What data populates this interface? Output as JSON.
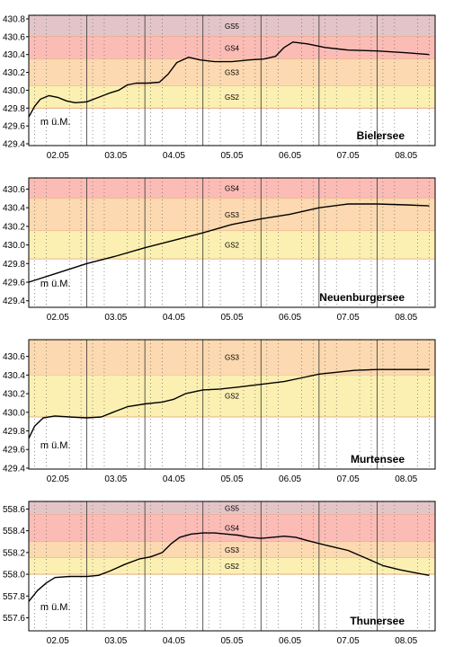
{
  "chart_data": [
    {
      "type": "line",
      "title": "Bielersee",
      "unit_label": "m ü.M.",
      "ylim": [
        429.38,
        430.84
      ],
      "yticks": [
        "429.4",
        "429.6",
        "429.8",
        "430.0",
        "430.2",
        "430.4",
        "430.6",
        "430.8"
      ],
      "xticks": [
        "02.05",
        "03.05",
        "04.05",
        "05.05",
        "06.05",
        "07.05",
        "08.05"
      ],
      "xlim": [
        1.5,
        8.5
      ],
      "grid": true,
      "zones": [
        {
          "label": "GS5",
          "from": 430.6,
          "to": 430.84,
          "color": "#e3c5c8"
        },
        {
          "label": "GS4",
          "from": 430.35,
          "to": 430.6,
          "color": "#fbbcb6"
        },
        {
          "label": "GS3",
          "from": 430.05,
          "to": 430.35,
          "color": "#fcd9b0"
        },
        {
          "label": "GS2",
          "from": 429.8,
          "to": 430.05,
          "color": "#fbf0b2"
        }
      ],
      "series": [
        {
          "x": [
            1.5,
            1.6,
            1.7,
            1.85,
            2.0,
            2.15,
            2.3,
            2.5,
            2.7,
            2.9,
            3.05,
            3.2,
            3.35,
            3.55,
            3.75,
            3.9,
            4.05,
            4.25,
            4.45,
            4.7,
            5.0,
            5.3,
            5.55,
            5.75,
            5.9,
            6.05,
            6.3,
            6.6,
            7.0,
            7.5,
            8.0,
            8.4
          ],
          "y": [
            429.7,
            429.82,
            429.9,
            429.94,
            429.92,
            429.88,
            429.86,
            429.87,
            429.92,
            429.97,
            430.0,
            430.06,
            430.08,
            430.08,
            430.09,
            430.18,
            430.31,
            430.37,
            430.34,
            430.32,
            430.32,
            430.34,
            430.35,
            430.38,
            430.48,
            430.54,
            430.52,
            430.48,
            430.45,
            430.44,
            430.42,
            430.4
          ]
        }
      ]
    },
    {
      "type": "line",
      "title": "Neuenburgersee",
      "unit_label": "m ü.M.",
      "ylim": [
        429.33,
        430.72
      ],
      "yticks": [
        "429.4",
        "429.6",
        "429.8",
        "430.0",
        "430.2",
        "430.4",
        "430.6"
      ],
      "xticks": [
        "02.05",
        "03.05",
        "04.05",
        "05.05",
        "06.05",
        "07.05",
        "08.05"
      ],
      "xlim": [
        1.5,
        8.5
      ],
      "grid": true,
      "zones": [
        {
          "label": "GS4",
          "from": 430.5,
          "to": 430.72,
          "color": "#fbbcb6"
        },
        {
          "label": "GS3",
          "from": 430.15,
          "to": 430.5,
          "color": "#fcd9b0"
        },
        {
          "label": "GS2",
          "from": 429.85,
          "to": 430.15,
          "color": "#fbf0b2"
        }
      ],
      "series": [
        {
          "x": [
            1.5,
            2.0,
            2.5,
            3.0,
            3.5,
            4.0,
            4.5,
            5.0,
            5.5,
            6.0,
            6.5,
            7.0,
            7.5,
            8.0,
            8.4
          ],
          "y": [
            429.6,
            429.7,
            429.8,
            429.88,
            429.97,
            430.05,
            430.13,
            430.22,
            430.28,
            430.33,
            430.4,
            430.44,
            430.44,
            430.43,
            430.42
          ]
        }
      ]
    },
    {
      "type": "line",
      "title": "Murtensee",
      "unit_label": "m ü.M.",
      "ylim": [
        429.39,
        430.78
      ],
      "yticks": [
        "429.4",
        "429.6",
        "429.8",
        "430.0",
        "430.2",
        "430.4",
        "430.6"
      ],
      "xticks": [
        "02.05",
        "03.05",
        "04.05",
        "05.05",
        "06.05",
        "07.05",
        "08.05"
      ],
      "xlim": [
        1.5,
        8.5
      ],
      "grid": true,
      "zones": [
        {
          "label": "GS3",
          "from": 430.4,
          "to": 430.78,
          "color": "#fcd9b0"
        },
        {
          "label": "GS2",
          "from": 429.95,
          "to": 430.4,
          "color": "#fbf0b2"
        }
      ],
      "series": [
        {
          "x": [
            1.5,
            1.6,
            1.75,
            1.95,
            2.2,
            2.5,
            2.75,
            2.95,
            3.2,
            3.5,
            3.8,
            4.0,
            4.2,
            4.5,
            4.8,
            5.1,
            5.5,
            5.9,
            6.2,
            6.5,
            6.8,
            7.1,
            7.5,
            8.0,
            8.4
          ],
          "y": [
            429.72,
            429.85,
            429.94,
            429.96,
            429.95,
            429.94,
            429.95,
            430.0,
            430.06,
            430.09,
            430.11,
            430.14,
            430.2,
            430.24,
            430.25,
            430.27,
            430.3,
            430.33,
            430.37,
            430.41,
            430.43,
            430.45,
            430.46,
            430.46,
            430.46
          ]
        }
      ]
    },
    {
      "type": "line",
      "title": "Thunersee",
      "unit_label": "m ü.M.",
      "ylim": [
        557.48,
        558.67
      ],
      "yticks": [
        "557.6",
        "557.8",
        "558.0",
        "558.2",
        "558.4",
        "558.6"
      ],
      "xticks": [
        "02.05",
        "03.05",
        "04.05",
        "05.05",
        "06.05",
        "07.05",
        "08.05"
      ],
      "xlim": [
        1.5,
        8.5
      ],
      "grid": true,
      "zones": [
        {
          "label": "GS5",
          "from": 558.55,
          "to": 558.67,
          "color": "#e3c5c8"
        },
        {
          "label": "GS4",
          "from": 558.3,
          "to": 558.55,
          "color": "#fbbcb6"
        },
        {
          "label": "GS3",
          "from": 558.15,
          "to": 558.3,
          "color": "#fcd9b0"
        },
        {
          "label": "GS2",
          "from": 558.0,
          "to": 558.15,
          "color": "#fbf0b2"
        }
      ],
      "series": [
        {
          "x": [
            1.5,
            1.65,
            1.8,
            1.95,
            2.2,
            2.5,
            2.7,
            2.9,
            3.15,
            3.4,
            3.6,
            3.8,
            3.95,
            4.1,
            4.3,
            4.5,
            4.7,
            4.9,
            5.1,
            5.3,
            5.5,
            5.7,
            5.9,
            6.1,
            6.3,
            6.6,
            7.0,
            7.3,
            7.6,
            7.9,
            8.2,
            8.4
          ],
          "y": [
            557.75,
            557.85,
            557.92,
            557.97,
            557.98,
            557.98,
            557.99,
            558.03,
            558.09,
            558.14,
            558.16,
            558.2,
            558.28,
            558.34,
            558.37,
            558.38,
            558.38,
            558.37,
            558.36,
            558.34,
            558.33,
            558.34,
            558.35,
            558.34,
            558.31,
            558.27,
            558.22,
            558.15,
            558.08,
            558.04,
            558.01,
            557.99
          ]
        }
      ]
    }
  ]
}
